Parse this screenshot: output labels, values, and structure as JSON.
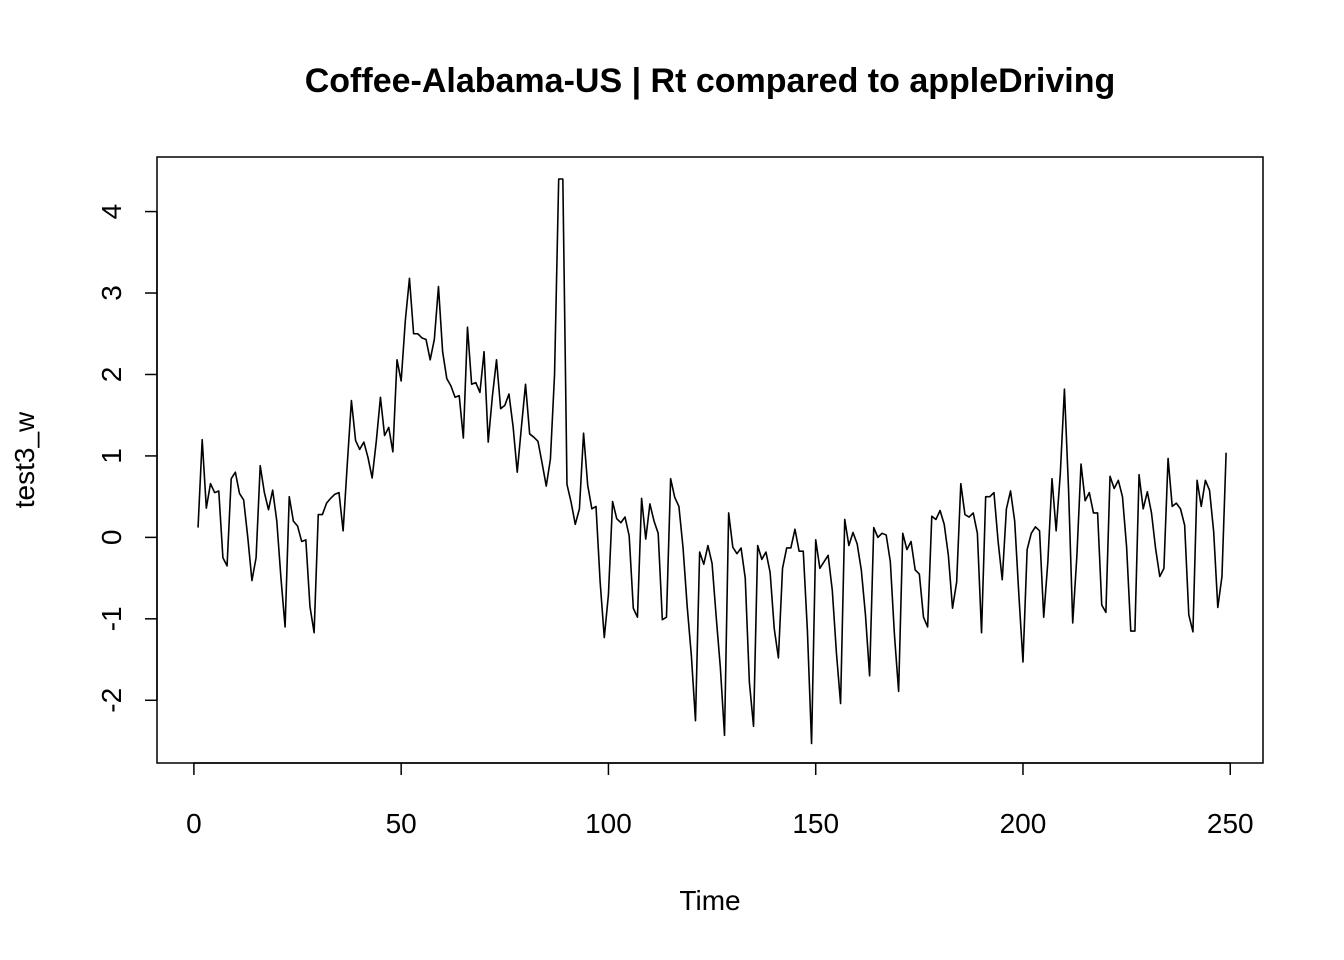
{
  "chart_data": {
    "type": "line",
    "title": "Coffee-Alabama-US | Rt compared to appleDriving",
    "xlabel": "Time",
    "ylabel": "test3_w",
    "xlim": [
      -8.9,
      257.9
    ],
    "ylim": [
      -2.77,
      4.67
    ],
    "x_ticks": [
      0,
      50,
      100,
      150,
      200,
      250
    ],
    "y_ticks": [
      -2,
      -1,
      0,
      1,
      2,
      3,
      4
    ],
    "x_tick_labels": [
      "0",
      "50",
      "100",
      "150",
      "200",
      "250"
    ],
    "y_tick_labels": [
      "-2",
      "-1",
      "0",
      "1",
      "2",
      "3",
      "4"
    ],
    "grid": false,
    "line_color": "#000000",
    "x_start": 1,
    "x_step": 1,
    "series": [
      {
        "values": [
          0.12,
          1.2,
          0.36,
          0.66,
          0.55,
          0.57,
          -0.25,
          -0.35,
          0.72,
          0.8,
          0.54,
          0.46,
          0.0,
          -0.53,
          -0.25,
          0.88,
          0.55,
          0.34,
          0.58,
          0.2,
          -0.5,
          -1.1,
          0.5,
          0.2,
          0.14,
          -0.05,
          -0.03,
          -0.85,
          -1.17,
          0.28,
          0.28,
          0.42,
          0.48,
          0.53,
          0.55,
          0.08,
          0.9,
          1.68,
          1.19,
          1.08,
          1.17,
          0.98,
          0.73,
          1.18,
          1.72,
          1.25,
          1.35,
          1.05,
          2.18,
          1.92,
          2.66,
          3.18,
          2.5,
          2.5,
          2.45,
          2.43,
          2.18,
          2.43,
          3.08,
          2.28,
          1.95,
          1.86,
          1.72,
          1.74,
          1.22,
          2.58,
          1.88,
          1.9,
          1.78,
          2.28,
          1.17,
          1.73,
          2.18,
          1.58,
          1.62,
          1.76,
          1.36,
          0.8,
          1.35,
          1.88,
          1.27,
          1.23,
          1.18,
          0.91,
          0.63,
          0.96,
          2.0,
          4.4,
          4.4,
          0.65,
          0.43,
          0.16,
          0.35,
          1.28,
          0.64,
          0.35,
          0.38,
          -0.55,
          -1.23,
          -0.7,
          0.44,
          0.23,
          0.18,
          0.25,
          0.02,
          -0.87,
          -0.98,
          0.48,
          -0.02,
          0.41,
          0.2,
          0.05,
          -1.01,
          -0.98,
          0.72,
          0.49,
          0.38,
          -0.13,
          -0.85,
          -1.45,
          -2.25,
          -0.18,
          -0.33,
          -0.1,
          -0.32,
          -0.98,
          -1.6,
          -2.43,
          0.3,
          -0.12,
          -0.2,
          -0.13,
          -0.5,
          -1.78,
          -2.32,
          -0.1,
          -0.27,
          -0.18,
          -0.43,
          -1.12,
          -1.48,
          -0.38,
          -0.13,
          -0.13,
          0.1,
          -0.17,
          -0.17,
          -1.15,
          -2.53,
          -0.03,
          -0.38,
          -0.3,
          -0.22,
          -0.65,
          -1.42,
          -2.04,
          0.22,
          -0.1,
          0.06,
          -0.08,
          -0.4,
          -0.95,
          -1.7,
          0.12,
          0.0,
          0.05,
          0.03,
          -0.3,
          -1.2,
          -1.89,
          0.05,
          -0.15,
          -0.05,
          -0.4,
          -0.45,
          -0.98,
          -1.1,
          0.26,
          0.22,
          0.33,
          0.16,
          -0.22,
          -0.87,
          -0.55,
          0.66,
          0.28,
          0.25,
          0.3,
          0.05,
          -1.17,
          0.5,
          0.5,
          0.55,
          -0.05,
          -0.52,
          0.35,
          0.57,
          0.2,
          -0.7,
          -1.53,
          -0.15,
          0.05,
          0.13,
          0.08,
          -0.98,
          -0.3,
          0.72,
          0.08,
          0.78,
          1.82,
          0.58,
          -1.05,
          -0.23,
          0.9,
          0.45,
          0.55,
          0.3,
          0.3,
          -0.83,
          -0.92,
          0.75,
          0.6,
          0.7,
          0.5,
          -0.12,
          -1.15,
          -1.15,
          0.77,
          0.35,
          0.56,
          0.3,
          -0.14,
          -0.48,
          -0.38,
          0.97,
          0.38,
          0.42,
          0.35,
          0.15,
          -0.95,
          -1.16,
          0.7,
          0.38,
          0.7,
          0.58,
          0.07,
          -0.86,
          -0.48,
          1.04
        ]
      }
    ]
  }
}
